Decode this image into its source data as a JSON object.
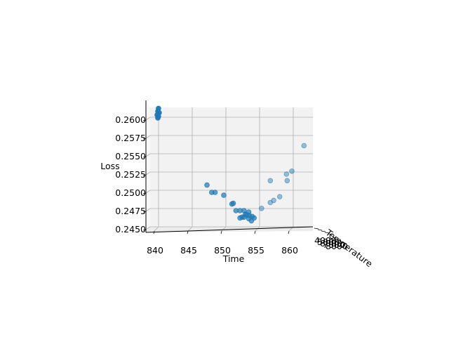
{
  "chart_data": {
    "type": "scatter",
    "projection": "3d",
    "title": "",
    "xlabel": "Time",
    "ylabel": "Temperature",
    "zlabel": "Loss",
    "xticks": [
      "840",
      "845",
      "850",
      "855",
      "860"
    ],
    "zticks": [
      "0.2450",
      "0.2475",
      "0.2500",
      "0.2525",
      "0.2550",
      "0.2575",
      "0.2600"
    ],
    "yticks": [
      "4000",
      "5000",
      "6000",
      "7000",
      "8000"
    ],
    "xlim": [
      838.5,
      862.8
    ],
    "zlim": [
      0.2448,
      0.2624
    ],
    "grid": true,
    "marker_color": "#1f77b4",
    "points": [
      {
        "x": 840.2,
        "z": 0.2616
      },
      {
        "x": 840.1,
        "z": 0.2612
      },
      {
        "x": 840.3,
        "z": 0.261
      },
      {
        "x": 840.0,
        "z": 0.2607
      },
      {
        "x": 840.2,
        "z": 0.2605
      },
      {
        "x": 840.1,
        "z": 0.2603
      },
      {
        "x": 847.4,
        "z": 0.2511
      },
      {
        "x": 848.1,
        "z": 0.2501
      },
      {
        "x": 848.6,
        "z": 0.2501
      },
      {
        "x": 849.9,
        "z": 0.2497
      },
      {
        "x": 851.1,
        "z": 0.2485
      },
      {
        "x": 851.3,
        "z": 0.2486
      },
      {
        "x": 851.7,
        "z": 0.2476
      },
      {
        "x": 852.3,
        "z": 0.2476
      },
      {
        "x": 852.9,
        "z": 0.2476
      },
      {
        "x": 853.6,
        "z": 0.2474
      },
      {
        "x": 853.1,
        "z": 0.2471
      },
      {
        "x": 852.6,
        "z": 0.2467
      },
      {
        "x": 852.3,
        "z": 0.2466
      },
      {
        "x": 852.9,
        "z": 0.2467
      },
      {
        "x": 853.3,
        "z": 0.247
      },
      {
        "x": 853.7,
        "z": 0.2469
      },
      {
        "x": 854.1,
        "z": 0.2468
      },
      {
        "x": 853.6,
        "z": 0.2465
      },
      {
        "x": 854.0,
        "z": 0.2462
      },
      {
        "x": 854.4,
        "z": 0.2466
      },
      {
        "x": 855.5,
        "z": 0.2479
      },
      {
        "x": 856.8,
        "z": 0.2487
      },
      {
        "x": 857.3,
        "z": 0.249
      },
      {
        "x": 858.2,
        "z": 0.2495
      },
      {
        "x": 856.8,
        "z": 0.2517
      },
      {
        "x": 859.3,
        "z": 0.2517
      },
      {
        "x": 859.2,
        "z": 0.2526
      },
      {
        "x": 860.0,
        "z": 0.253
      },
      {
        "x": 861.8,
        "z": 0.2565
      }
    ]
  }
}
